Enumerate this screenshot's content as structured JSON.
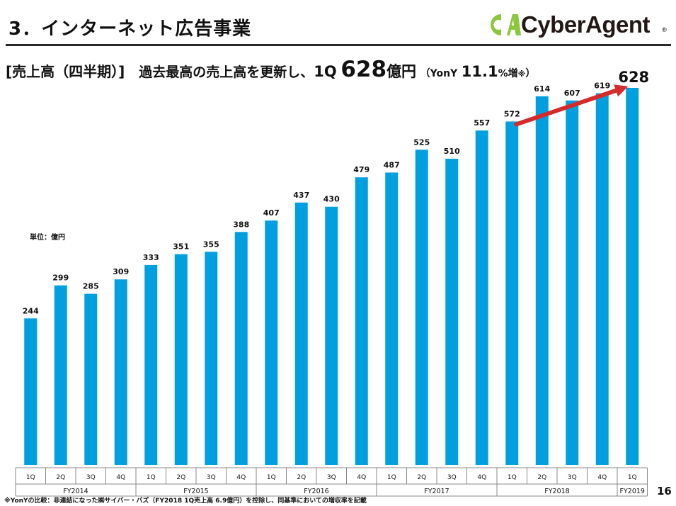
{
  "header": {
    "title": "3．インターネット広告事業",
    "logo_text": "CyberAgent",
    "logo_mark": "CA",
    "logo_reg": "®"
  },
  "subtitle": {
    "bracket": "[売上高（四半期）]",
    "lead": "過去最高の売上高を更新し、",
    "quarter": "1Q",
    "value": "628",
    "unit": "億円",
    "yoy_open": "（YonY",
    "yoy_value": "11.1",
    "yoy_pct": "%増",
    "yoy_mark": "※",
    "yoy_close": "）"
  },
  "unit_label": "単位：億円",
  "footnote": "※YonYの比較：非連結になった㈱サイバー・バズ（FY2018 1Q売上高 6.9億円）を控除し、同基準においての増収率を記載",
  "page_number": "16",
  "colors": {
    "bar": "#00a0e0",
    "arrow": "#d62b2b",
    "logo_green": "#8cc63f",
    "axis": "#888888"
  },
  "chart_data": {
    "type": "bar",
    "title": "売上高（四半期）",
    "ylabel": "単位：億円",
    "ylim": [
      0,
      628
    ],
    "categories": [
      "1Q",
      "2Q",
      "3Q",
      "4Q",
      "1Q",
      "2Q",
      "3Q",
      "4Q",
      "1Q",
      "2Q",
      "3Q",
      "4Q",
      "1Q",
      "2Q",
      "3Q",
      "4Q",
      "1Q",
      "2Q",
      "3Q",
      "4Q",
      "1Q"
    ],
    "groups": [
      {
        "name": "FY2014",
        "size": 4
      },
      {
        "name": "FY2015",
        "size": 4
      },
      {
        "name": "FY2016",
        "size": 4
      },
      {
        "name": "FY2017",
        "size": 4
      },
      {
        "name": "FY2018",
        "size": 4
      },
      {
        "name": "FY2019",
        "size": 1
      }
    ],
    "values": [
      244,
      299,
      285,
      309,
      333,
      351,
      355,
      388,
      407,
      437,
      430,
      479,
      487,
      525,
      510,
      557,
      572,
      614,
      607,
      619,
      628
    ],
    "highlight": {
      "index": 20,
      "label": "628"
    },
    "arrow": {
      "from_index": 16,
      "to_index": 20
    }
  }
}
